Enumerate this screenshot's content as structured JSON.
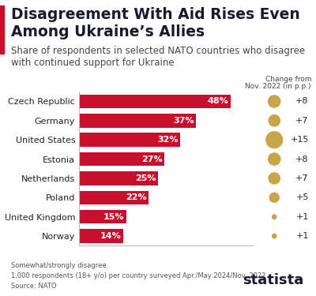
{
  "chart_data": {
    "type": "bar",
    "orientation": "horizontal",
    "title": "Disagreement With Aid Rises Even Among Ukraine’s Allies",
    "subtitle": "Share of respondents in selected NATO countries who disagree with continued support for Ukraine",
    "categories": [
      "Czech Republic",
      "Germany",
      "United States",
      "Estonia",
      "Netherlands",
      "Poland",
      "United Kingdom",
      "Norway"
    ],
    "values": [
      48,
      37,
      32,
      27,
      25,
      22,
      15,
      14
    ],
    "value_labels": [
      "48%",
      "37%",
      "32%",
      "27%",
      "25%",
      "22%",
      "15%",
      "14%"
    ],
    "color": "#c8102e",
    "data_labels": true,
    "tick_labels": "y",
    "xlim": [
      0,
      55
    ],
    "xticks": [],
    "change_title": "Change from\nNov. 2022 (in p.p.)",
    "changes": [
      8,
      7,
      15,
      8,
      7,
      5,
      1,
      1
    ],
    "change_labels": [
      "+8",
      "+7",
      "+15",
      "+8",
      "+7",
      "+5",
      "+1",
      "+1"
    ],
    "change_color": "#c9a54a",
    "notes": [
      "Somewhat/strongly disagree.",
      "1,000 respondents (18+ y/o) per country surveyed Apr./May 2024/Nov. 2022"
    ],
    "source": "Source: NATO",
    "logo": "statista"
  }
}
